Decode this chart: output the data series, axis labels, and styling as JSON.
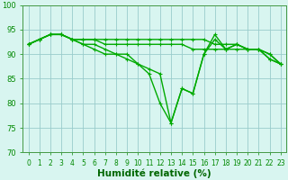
{
  "lines": [
    {
      "x": [
        0,
        1,
        2,
        3,
        4,
        5,
        6,
        7,
        8,
        9,
        10,
        11,
        12,
        13,
        14,
        15,
        16,
        17,
        18,
        19,
        20,
        21,
        22,
        23
      ],
      "y": [
        92,
        93,
        94,
        94,
        93,
        93,
        93,
        93,
        93,
        93,
        93,
        93,
        93,
        93,
        93,
        93,
        93,
        92,
        92,
        92,
        91,
        91,
        90,
        88
      ]
    },
    {
      "x": [
        0,
        1,
        2,
        3,
        4,
        5,
        6,
        7,
        8,
        9,
        10,
        11,
        12,
        13,
        14,
        15,
        16,
        17,
        18,
        19,
        20,
        21,
        22,
        23
      ],
      "y": [
        92,
        93,
        94,
        94,
        93,
        93,
        93,
        92,
        92,
        92,
        92,
        92,
        92,
        92,
        92,
        91,
        91,
        91,
        91,
        91,
        91,
        91,
        90,
        88
      ]
    },
    {
      "x": [
        0,
        1,
        2,
        3,
        4,
        5,
        6,
        7,
        8,
        9,
        10,
        11,
        12,
        13,
        14,
        15,
        16,
        17,
        18,
        19,
        20,
        21,
        22,
        23
      ],
      "y": [
        92,
        93,
        94,
        94,
        93,
        92,
        92,
        91,
        90,
        90,
        88,
        86,
        80,
        76,
        83,
        82,
        90,
        94,
        91,
        92,
        91,
        91,
        89,
        88
      ]
    },
    {
      "x": [
        0,
        1,
        2,
        3,
        4,
        5,
        6,
        7,
        8,
        9,
        10,
        11,
        12,
        13,
        14,
        15,
        16,
        17,
        18,
        19,
        20,
        21,
        22,
        23
      ],
      "y": [
        92,
        93,
        94,
        94,
        93,
        92,
        91,
        90,
        90,
        89,
        88,
        87,
        86,
        76,
        83,
        82,
        90,
        93,
        91,
        92,
        91,
        91,
        89,
        88
      ]
    }
  ],
  "line_color": "#00aa00",
  "xlabel": "Humidité relative (%)",
  "xlim": [
    -0.5,
    23.5
  ],
  "ylim": [
    70,
    100
  ],
  "yticks": [
    70,
    75,
    80,
    85,
    90,
    95,
    100
  ],
  "xticks": [
    0,
    1,
    2,
    3,
    4,
    5,
    6,
    7,
    8,
    9,
    10,
    11,
    12,
    13,
    14,
    15,
    16,
    17,
    18,
    19,
    20,
    21,
    22,
    23
  ],
  "xtick_labels": [
    "0",
    "1",
    "2",
    "3",
    "4",
    "5",
    "6",
    "7",
    "8",
    "9",
    "10",
    "11",
    "12",
    "13",
    "14",
    "15",
    "16",
    "17",
    "18",
    "19",
    "20",
    "21",
    "22",
    "23"
  ],
  "background_color": "#d8f5f0",
  "grid_color": "#99cccc",
  "spine_color": "#449944",
  "tick_color": "#008800",
  "label_color": "#006600",
  "marker_size": 3.0,
  "linewidth": 1.0,
  "tick_fontsize": 5.5,
  "ylabel_fontsize": 6.0,
  "xlabel_fontsize": 7.5
}
